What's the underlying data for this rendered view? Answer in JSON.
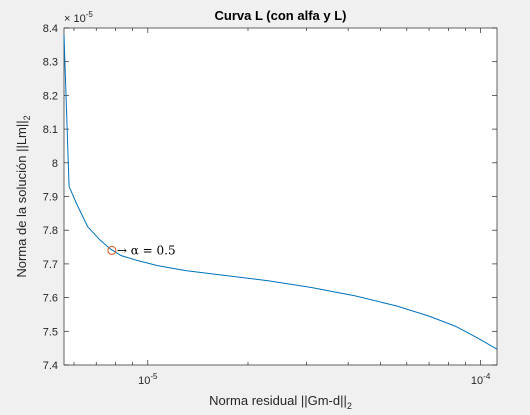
{
  "chart_data": {
    "type": "line",
    "title": "Curva L (con alfa y L)",
    "xlabel_main": "Norma residual ||Gm-d||",
    "xlabel_sub": "2",
    "ylabel_main": "Norma de la solución ||Lm||",
    "ylabel_sub": "2",
    "x_scale": "log",
    "xlim": [
      5.6e-06,
      0.000112
    ],
    "ylim": [
      7.4e-05,
      8.4e-05
    ],
    "y_exponent_label": "× 10",
    "y_exponent_power": "-5",
    "y_ticks": [
      "7.4",
      "7.5",
      "7.6",
      "7.7",
      "7.8",
      "7.9",
      "8",
      "8.1",
      "8.2",
      "8.3",
      "8.4"
    ],
    "x_tick_base": "10",
    "x_tick_powers": [
      "-5",
      "-4"
    ],
    "grid": false,
    "series": [
      {
        "color": "#0072bd",
        "x": [
          5.6e-06,
          5.8e-06,
          6.1e-06,
          6.6e-06,
          7.2e-06,
          7.7e-06,
          8.3e-06,
          9.3e-06,
          1.07e-05,
          1.3e-05,
          1.7e-05,
          2.3e-05,
          3.1e-05,
          4.2e-05,
          5.6e-05,
          7e-05,
          8.4e-05,
          9.8e-05,
          0.000112
        ],
        "y": [
          8.38e-05,
          7.93e-05,
          7.88e-05,
          7.81e-05,
          7.77e-05,
          7.745e-05,
          7.725e-05,
          7.71e-05,
          7.695e-05,
          7.68e-05,
          7.666e-05,
          7.65e-05,
          7.63e-05,
          7.605e-05,
          7.575e-05,
          7.545e-05,
          7.515e-05,
          7.48e-05,
          7.447e-05
        ]
      }
    ],
    "highlight_point": {
      "x": 7.8e-06,
      "y": 7.74e-05,
      "marker_color": "#d95319",
      "label": "→ α = 0.5"
    }
  }
}
